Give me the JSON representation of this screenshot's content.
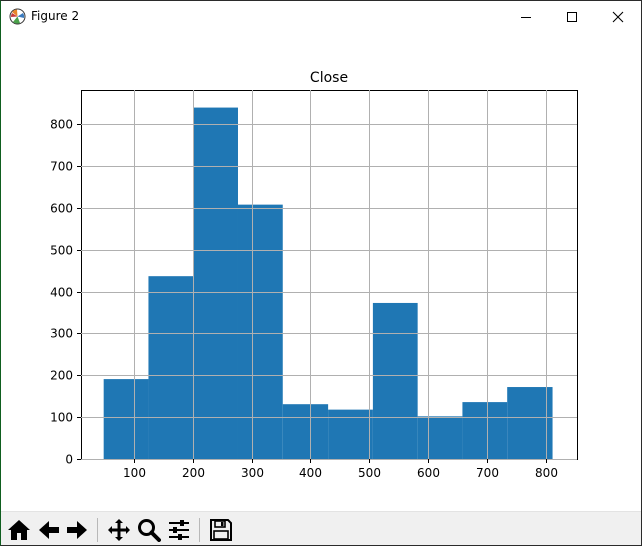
{
  "window": {
    "title": "Figure 2"
  },
  "toolbar": {
    "buttons": [
      {
        "name": "home-icon"
      },
      {
        "name": "back-arrow-icon"
      },
      {
        "name": "forward-arrow-icon"
      },
      {
        "name": "pan-move-icon"
      },
      {
        "name": "zoom-magnifier-icon"
      },
      {
        "name": "configure-subplots-icon"
      },
      {
        "name": "save-floppy-icon"
      }
    ]
  },
  "colors": {
    "bar_fill": "#1f77b4",
    "grid": "#b0b0b0",
    "axes": "#000000"
  },
  "chart_data": {
    "type": "bar",
    "title": "Close",
    "xlabel": "",
    "ylabel": "",
    "grid": true,
    "legend": "none",
    "xlim": [
      10.5,
      852.5
    ],
    "ylim": [
      0,
      882
    ],
    "xticks": [
      100,
      200,
      300,
      400,
      500,
      600,
      700,
      800
    ],
    "yticks": [
      0,
      100,
      200,
      300,
      400,
      500,
      600,
      700,
      800
    ],
    "bins": [
      {
        "x0": 49,
        "x1": 125,
        "count": 191
      },
      {
        "x0": 125,
        "x1": 201,
        "count": 437
      },
      {
        "x0": 201,
        "x1": 277,
        "count": 840
      },
      {
        "x0": 277,
        "x1": 353,
        "count": 608
      },
      {
        "x0": 353,
        "x1": 430,
        "count": 131
      },
      {
        "x0": 430,
        "x1": 506,
        "count": 118
      },
      {
        "x0": 506,
        "x1": 582,
        "count": 373
      },
      {
        "x0": 582,
        "x1": 658,
        "count": 102
      },
      {
        "x0": 658,
        "x1": 734,
        "count": 136
      },
      {
        "x0": 734,
        "x1": 811,
        "count": 172
      }
    ]
  }
}
